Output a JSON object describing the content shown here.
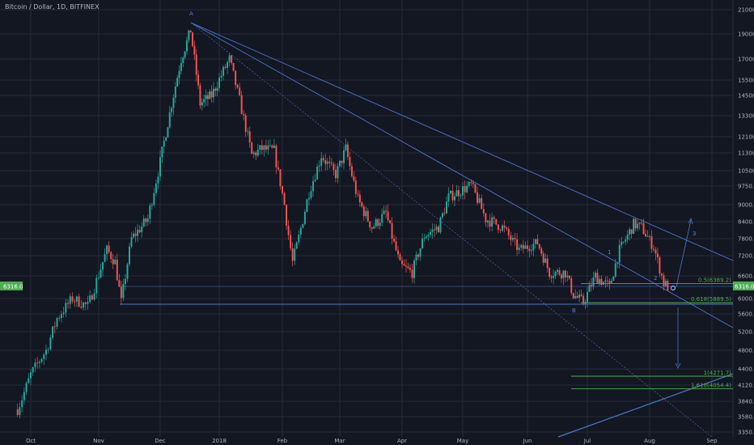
{
  "title": "Bitcoin / Dollar, 1D, BITFINEX",
  "colors": {
    "background": "#131722",
    "grid": "#262b3a",
    "up": "#26a69a",
    "down": "#ef5350",
    "trend": "#4a78c8",
    "fib": "#4caf50",
    "axis_text": "#b2b5be",
    "price_tag": "#4caf50"
  },
  "chart_data": {
    "type": "candlestick",
    "grid": true,
    "y_ticks": [
      "21000.0",
      "19000.0",
      "17000.0",
      "15500.0",
      "14500.0",
      "13300.0",
      "12100.0",
      "11300.0",
      "10500.0",
      "9750.0",
      "9000.0",
      "8400.0",
      "7800.0",
      "7200.0",
      "6600.0",
      "6000.0",
      "5600.0",
      "5200.0",
      "4800.0",
      "4400.0",
      "4120.0",
      "3840.0",
      "3580.0",
      "3350.0"
    ],
    "x_ticks": [
      "Oct",
      "Nov",
      "Dec",
      "2018",
      "Feb",
      "Mar",
      "Apr",
      "May",
      "Jun",
      "Jul",
      "Aug",
      "Sep"
    ],
    "current_price": "6316.0",
    "fib_levels": [
      {
        "label": "0.5(6389.2)",
        "value": 6389.2
      },
      {
        "label": "0.618(5889.5)",
        "value": 5889.5
      },
      {
        "label": "1(4271.7)",
        "value": 4271.7
      },
      {
        "label": "1.618(4054.4)",
        "value": 4054.4
      }
    ],
    "support_level": 5860,
    "wave_labels": [
      "A",
      "B",
      "1",
      "2",
      "3"
    ],
    "series": [
      {
        "date": "2017-09-25",
        "price": 3700
      },
      {
        "date": "2017-10-01",
        "price": 4300
      },
      {
        "date": "2017-10-08",
        "price": 4800
      },
      {
        "date": "2017-10-13",
        "price": 5500
      },
      {
        "date": "2017-10-20",
        "price": 6000
      },
      {
        "date": "2017-10-27",
        "price": 5800
      },
      {
        "date": "2017-11-05",
        "price": 7400
      },
      {
        "date": "2017-11-09",
        "price": 7000
      },
      {
        "date": "2017-11-12",
        "price": 5900
      },
      {
        "date": "2017-11-17",
        "price": 7800
      },
      {
        "date": "2017-11-25",
        "price": 8500
      },
      {
        "date": "2017-11-29",
        "price": 10000
      },
      {
        "date": "2017-12-07",
        "price": 14000
      },
      {
        "date": "2017-12-12",
        "price": 17000
      },
      {
        "date": "2017-12-17",
        "price": 19300
      },
      {
        "date": "2017-12-22",
        "price": 14000
      },
      {
        "date": "2017-12-28",
        "price": 14500
      },
      {
        "date": "2018-01-06",
        "price": 17000
      },
      {
        "date": "2018-01-11",
        "price": 14200
      },
      {
        "date": "2018-01-17",
        "price": 11200
      },
      {
        "date": "2018-01-22",
        "price": 11500
      },
      {
        "date": "2018-01-28",
        "price": 11400
      },
      {
        "date": "2018-02-02",
        "price": 9000
      },
      {
        "date": "2018-02-06",
        "price": 7000
      },
      {
        "date": "2018-02-14",
        "price": 9500
      },
      {
        "date": "2018-02-20",
        "price": 11200
      },
      {
        "date": "2018-02-27",
        "price": 10300
      },
      {
        "date": "2018-03-04",
        "price": 11500
      },
      {
        "date": "2018-03-10",
        "price": 9200
      },
      {
        "date": "2018-03-17",
        "price": 8200
      },
      {
        "date": "2018-03-24",
        "price": 8700
      },
      {
        "date": "2018-03-31",
        "price": 6900
      },
      {
        "date": "2018-04-06",
        "price": 6700
      },
      {
        "date": "2018-04-12",
        "price": 7900
      },
      {
        "date": "2018-04-19",
        "price": 8200
      },
      {
        "date": "2018-04-24",
        "price": 9300
      },
      {
        "date": "2018-05-05",
        "price": 9800
      },
      {
        "date": "2018-05-12",
        "price": 8500
      },
      {
        "date": "2018-05-20",
        "price": 8200
      },
      {
        "date": "2018-05-28",
        "price": 7400
      },
      {
        "date": "2018-06-06",
        "price": 7650
      },
      {
        "date": "2018-06-12",
        "price": 6700
      },
      {
        "date": "2018-06-20",
        "price": 6700
      },
      {
        "date": "2018-06-24",
        "price": 6100
      },
      {
        "date": "2018-06-29",
        "price": 5900
      },
      {
        "date": "2018-07-05",
        "price": 6600
      },
      {
        "date": "2018-07-12",
        "price": 6300
      },
      {
        "date": "2018-07-17",
        "price": 7400
      },
      {
        "date": "2018-07-24",
        "price": 8300
      },
      {
        "date": "2018-07-28",
        "price": 8200
      },
      {
        "date": "2018-08-03",
        "price": 7500
      },
      {
        "date": "2018-08-08",
        "price": 6400
      },
      {
        "date": "2018-08-10",
        "price": 6316
      }
    ]
  }
}
